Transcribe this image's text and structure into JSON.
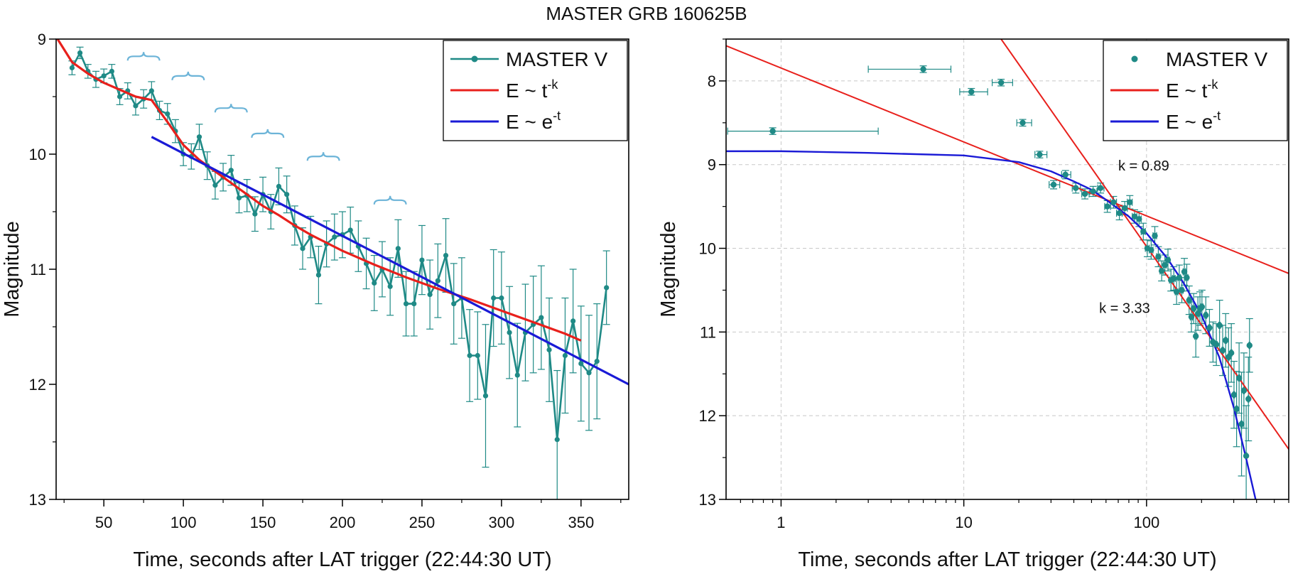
{
  "figure_title": "MASTER GRB 160625B",
  "colors": {
    "data": "#1f8a86",
    "powerlaw": "#e8201c",
    "exponential": "#1a1ad6",
    "braces": "#6cb4d8",
    "grid": "#c8c8c8"
  },
  "chart_data": [
    {
      "type": "line",
      "panel": "left",
      "xlabel": "Time, seconds after LAT trigger (22:44:30 UT)",
      "ylabel": "Magnitude",
      "xlim": [
        20,
        380
      ],
      "ylim": [
        9,
        13
      ],
      "y_inverted": true,
      "x_ticks": [
        50,
        100,
        150,
        200,
        250,
        300,
        350
      ],
      "y_ticks": [
        9,
        10,
        11,
        12,
        13
      ],
      "legend": {
        "position": "top-right",
        "entries": [
          {
            "label": "MASTER V",
            "sup": "",
            "style": "line-marker",
            "color": "#1f8a86"
          },
          {
            "label": "E ~ t",
            "sup": "-k",
            "style": "line",
            "color": "#e8201c"
          },
          {
            "label": "E ~ e",
            "sup": "-t",
            "style": "line",
            "color": "#1a1ad6"
          }
        ]
      },
      "series": [
        {
          "name": "MASTER V",
          "color": "#1f8a86",
          "x": [
            30,
            35,
            40,
            45,
            50,
            55,
            60,
            65,
            70,
            75,
            80,
            85,
            90,
            95,
            100,
            105,
            110,
            115,
            120,
            125,
            130,
            135,
            140,
            145,
            150,
            155,
            160,
            165,
            170,
            175,
            180,
            185,
            190,
            195,
            200,
            205,
            210,
            215,
            220,
            225,
            230,
            235,
            240,
            245,
            250,
            255,
            260,
            265,
            270,
            275,
            280,
            285,
            290,
            295,
            300,
            305,
            310,
            315,
            320,
            325,
            330,
            335,
            340,
            345,
            350,
            355,
            360,
            366
          ],
          "y": [
            9.25,
            9.12,
            9.28,
            9.35,
            9.32,
            9.28,
            9.5,
            9.45,
            9.58,
            9.52,
            9.45,
            9.62,
            9.65,
            9.8,
            10.0,
            10.02,
            9.85,
            10.1,
            10.27,
            10.2,
            10.14,
            10.38,
            10.36,
            10.52,
            10.35,
            10.5,
            10.28,
            10.35,
            10.62,
            10.82,
            10.72,
            11.05,
            10.78,
            10.72,
            10.7,
            10.66,
            10.8,
            10.95,
            11.12,
            11.0,
            11.15,
            10.82,
            11.3,
            11.3,
            10.92,
            11.22,
            11.1,
            10.88,
            11.3,
            11.25,
            11.75,
            11.75,
            12.1,
            11.25,
            11.25,
            11.55,
            11.92,
            11.55,
            11.48,
            11.42,
            11.7,
            12.48,
            11.75,
            11.45,
            11.82,
            11.9,
            11.8,
            11.16
          ],
          "yerr": [
            0.06,
            0.05,
            0.06,
            0.07,
            0.06,
            0.06,
            0.07,
            0.07,
            0.08,
            0.08,
            0.08,
            0.08,
            0.09,
            0.1,
            0.1,
            0.11,
            0.11,
            0.12,
            0.12,
            0.12,
            0.13,
            0.13,
            0.14,
            0.15,
            0.15,
            0.15,
            0.16,
            0.16,
            0.17,
            0.18,
            0.18,
            0.25,
            0.2,
            0.2,
            0.2,
            0.2,
            0.22,
            0.22,
            0.24,
            0.24,
            0.25,
            0.25,
            0.28,
            0.28,
            0.3,
            0.3,
            0.32,
            0.32,
            0.35,
            0.35,
            0.4,
            0.38,
            0.62,
            0.42,
            0.4,
            0.4,
            0.45,
            0.42,
            0.42,
            0.45,
            0.45,
            0.6,
            0.5,
            0.45,
            0.5,
            0.5,
            0.5,
            0.32
          ]
        },
        {
          "name": "E ~ t-k",
          "color": "#e8201c",
          "x": [
            20,
            30,
            40,
            50,
            60,
            70,
            80,
            90,
            100,
            110,
            120,
            130,
            140,
            150,
            160,
            170,
            180,
            190,
            200,
            220,
            240,
            260,
            280,
            300,
            320,
            340,
            350
          ],
          "y": [
            8.98,
            9.2,
            9.3,
            9.38,
            9.44,
            9.5,
            9.53,
            9.72,
            9.92,
            10.05,
            10.15,
            10.25,
            10.35,
            10.45,
            10.53,
            10.62,
            10.7,
            10.77,
            10.84,
            10.96,
            11.07,
            11.17,
            11.26,
            11.36,
            11.46,
            11.56,
            11.62
          ]
        },
        {
          "name": "E ~ e-t",
          "color": "#1a1ad6",
          "x": [
            80,
            380
          ],
          "y": [
            9.85,
            12.0
          ]
        }
      ],
      "annotations": {
        "braces": [
          {
            "x": [
              65,
              85
            ],
            "y": 9.15
          },
          {
            "x": [
              93,
              113
            ],
            "y": 9.32
          },
          {
            "x": [
              120,
              140
            ],
            "y": 9.6
          },
          {
            "x": [
              143,
              163
            ],
            "y": 9.82
          },
          {
            "x": [
              178,
              198
            ],
            "y": 10.02
          },
          {
            "x": [
              220,
              240
            ],
            "y": 10.4
          }
        ]
      }
    },
    {
      "type": "scatter",
      "panel": "right",
      "xlabel": "Time, seconds after LAT trigger (22:44:30 UT)",
      "ylabel": "Magnitude",
      "x_scale": "log",
      "xlim": [
        0.5,
        600
      ],
      "ylim": [
        7.5,
        13
      ],
      "y_inverted": true,
      "x_ticks": [
        1,
        10,
        100
      ],
      "y_ticks": [
        8,
        9,
        10,
        11,
        12,
        13
      ],
      "grid": true,
      "legend": {
        "position": "top-right",
        "entries": [
          {
            "label": "MASTER V",
            "sup": "",
            "style": "marker",
            "color": "#1f8a86"
          },
          {
            "label": "E ~ t",
            "sup": "-k",
            "style": "line",
            "color": "#e8201c"
          },
          {
            "label": "E ~ e",
            "sup": "-t",
            "style": "line",
            "color": "#1a1ad6"
          }
        ]
      },
      "text_annotations": [
        {
          "text": "k = 0.89",
          "x": 70,
          "y": 9.07
        },
        {
          "text": "k = 3.33",
          "x": 55,
          "y": 10.77
        }
      ],
      "series": [
        {
          "name": "MASTER V",
          "color": "#1f8a86",
          "x": [
            0.9,
            6,
            11,
            16,
            21,
            26,
            31,
            36,
            41,
            46,
            51,
            56,
            61,
            66,
            71,
            76,
            81,
            86,
            91,
            96,
            101,
            106,
            111,
            116,
            121,
            126,
            131,
            136,
            141,
            146,
            151,
            156,
            161,
            166,
            171,
            176,
            181,
            186,
            191,
            196,
            201,
            211,
            221,
            231,
            241,
            251,
            261,
            271,
            281,
            291,
            301,
            311,
            321,
            331,
            341,
            351,
            361,
            366
          ],
          "xerr_low": [
            0.9,
            3,
            1.5,
            1.7,
            1.5,
            1.5,
            1.7,
            1.7,
            1.8,
            1.8,
            2,
            2,
            2,
            2.5,
            2.5,
            2.5,
            2.5,
            2.5,
            2.5,
            2.5,
            2.5,
            2.5,
            2.5,
            2.5,
            2.5,
            2.5,
            2.5,
            2.5,
            2.5,
            2.5,
            2.5,
            2.5,
            2.5,
            2.5,
            2.5,
            2.5,
            2.5,
            2.5,
            2.5,
            2.5,
            2.5,
            2.5,
            2.5,
            2.5,
            2.5,
            2.5,
            2.5,
            2.5,
            2.5,
            2.5,
            2.5,
            2.5,
            2.5,
            2.5,
            2.5,
            2.5,
            2.5,
            2.5
          ],
          "xerr_high": [
            2.5,
            2.5,
            2.5,
            2.5,
            2.5,
            2.5,
            2.5,
            2.5,
            2.5,
            2.5,
            2.5,
            2.5,
            2.5,
            2.5,
            2.5,
            2.5,
            2.5,
            2.5,
            2.5,
            2.5,
            2.5,
            2.5,
            2.5,
            2.5,
            2.5,
            2.5,
            2.5,
            2.5,
            2.5,
            2.5,
            2.5,
            2.5,
            2.5,
            2.5,
            2.5,
            2.5,
            2.5,
            2.5,
            2.5,
            2.5,
            2.5,
            2.5,
            2.5,
            2.5,
            2.5,
            2.5,
            2.5,
            2.5,
            2.5,
            2.5,
            2.5,
            2.5,
            2.5,
            2.5,
            2.5,
            2.5,
            2.5,
            2.5
          ],
          "y": [
            8.6,
            7.86,
            8.13,
            8.02,
            8.5,
            8.88,
            9.24,
            9.12,
            9.28,
            9.35,
            9.32,
            9.28,
            9.5,
            9.45,
            9.58,
            9.52,
            9.45,
            9.62,
            9.65,
            9.8,
            10.0,
            10.02,
            9.85,
            10.1,
            10.27,
            10.2,
            10.14,
            10.38,
            10.36,
            10.52,
            10.35,
            10.5,
            10.28,
            10.35,
            10.62,
            10.82,
            10.72,
            11.05,
            10.78,
            10.72,
            10.7,
            10.8,
            10.95,
            11.12,
            11.15,
            10.92,
            11.22,
            11.1,
            11.3,
            11.25,
            11.75,
            11.92,
            11.55,
            12.1,
            11.7,
            12.48,
            11.8,
            11.16
          ],
          "yerr": [
            0.04,
            0.04,
            0.04,
            0.04,
            0.04,
            0.04,
            0.05,
            0.05,
            0.06,
            0.06,
            0.06,
            0.06,
            0.07,
            0.07,
            0.08,
            0.08,
            0.08,
            0.08,
            0.09,
            0.1,
            0.1,
            0.11,
            0.11,
            0.12,
            0.12,
            0.12,
            0.13,
            0.13,
            0.14,
            0.15,
            0.15,
            0.15,
            0.16,
            0.16,
            0.17,
            0.18,
            0.18,
            0.25,
            0.2,
            0.2,
            0.2,
            0.22,
            0.22,
            0.24,
            0.25,
            0.3,
            0.3,
            0.32,
            0.35,
            0.35,
            0.4,
            0.45,
            0.42,
            0.62,
            0.45,
            0.6,
            0.5,
            0.32
          ]
        },
        {
          "name": "E ~ t-k (k = 0.89)",
          "color": "#e8201c",
          "x": [
            0.5,
            600
          ],
          "y": [
            7.58,
            10.3
          ]
        },
        {
          "name": "E ~ t-k (k = 3.33)",
          "color": "#e8201c",
          "x": [
            16,
            600
          ],
          "y": [
            7.5,
            12.4
          ]
        },
        {
          "name": "E ~ e-t",
          "color": "#1a1ad6",
          "x": [
            0.5,
            1,
            3,
            10,
            20,
            30,
            40,
            50,
            60,
            80,
            100,
            130,
            160,
            200,
            250,
            300,
            350,
            400
          ],
          "y": [
            8.84,
            8.84,
            8.86,
            8.89,
            8.97,
            9.08,
            9.2,
            9.3,
            9.42,
            9.62,
            9.82,
            10.12,
            10.42,
            10.8,
            11.3,
            11.9,
            12.5,
            13.05
          ]
        }
      ]
    }
  ]
}
